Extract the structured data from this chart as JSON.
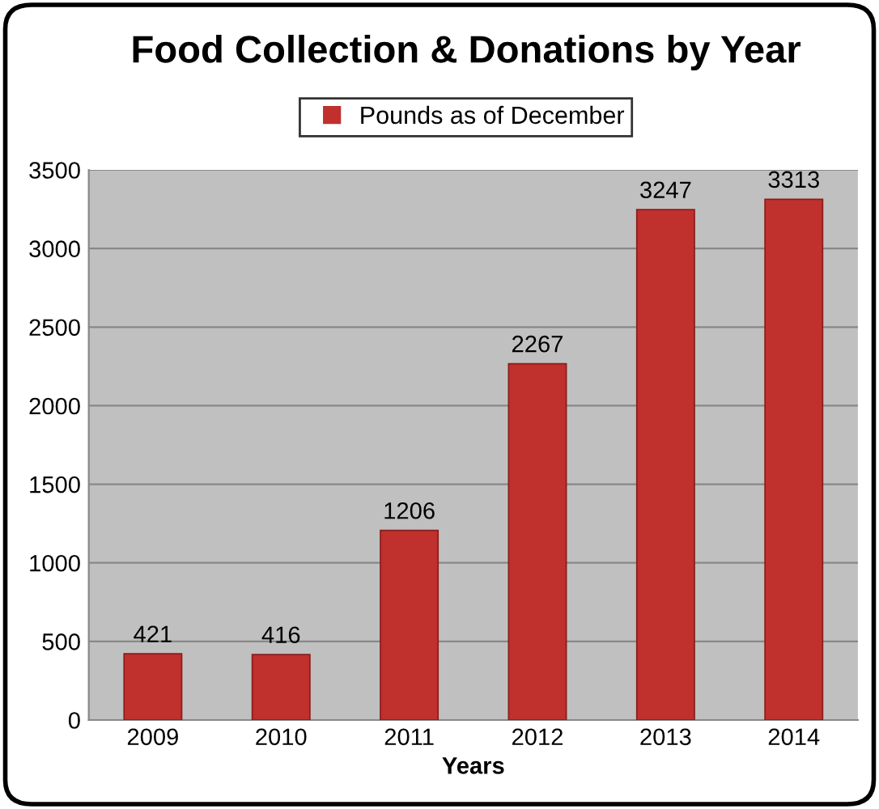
{
  "chart_data": {
    "type": "bar",
    "title": "Food Collection & Donations by Year",
    "xlabel": "Years",
    "categories": [
      "2009",
      "2010",
      "2011",
      "2012",
      "2013",
      "2014"
    ],
    "series": [
      {
        "name": "Pounds as of December",
        "color": "#c0302c",
        "values": [
          421,
          416,
          1206,
          2267,
          3247,
          3313
        ]
      }
    ],
    "ylim": [
      0,
      3500
    ],
    "yticks": [
      0,
      500,
      1000,
      1500,
      2000,
      2500,
      3000,
      3500
    ],
    "grid": "y",
    "legend": "top",
    "data_labels": true
  }
}
